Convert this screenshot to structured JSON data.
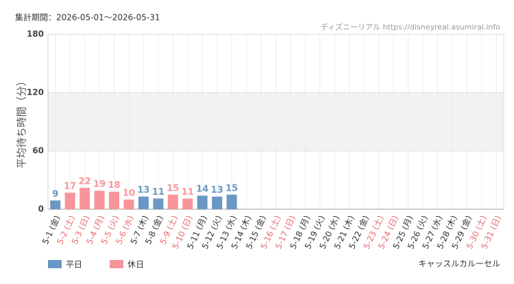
{
  "chart_data": {
    "type": "bar",
    "period": "集計期間：2026-05-01～2026-05-31",
    "source": "ディズニーリアル https://disneyreal.asumirai.info",
    "attraction": "キャッスルカルーセル",
    "y_label": "平均待ち時間（分）",
    "categories": [
      "5-1 (金)",
      "5-2 (土)",
      "5-3 (日)",
      "5-4 (月)",
      "5-5 (火)",
      "5-6 (水)",
      "5-7 (木)",
      "5-8 (金)",
      "5-9 (土)",
      "5-10 (日)",
      "5-11 (月)",
      "5-12 (火)",
      "5-13 (水)",
      "5-14 (木)",
      "5-15 (金)",
      "5-16 (土)",
      "5-17 (日)",
      "5-18 (月)",
      "5-19 (火)",
      "5-20 (水)",
      "5-21 (木)",
      "5-22 (金)",
      "5-23 (土)",
      "5-24 (日)",
      "5-25 (月)",
      "5-26 (火)",
      "5-27 (水)",
      "5-28 (木)",
      "5-29 (金)",
      "5-30 (土)",
      "5-31 (日)"
    ],
    "category_colors": [
      "#333",
      "#e8696f",
      "#e8696f",
      "#e8696f",
      "#e8696f",
      "#e8696f",
      "#333",
      "#333",
      "#e8696f",
      "#e8696f",
      "#333",
      "#333",
      "#333",
      "#333",
      "#333",
      "#e8696f",
      "#e8696f",
      "#333",
      "#333",
      "#333",
      "#333",
      "#333",
      "#e8696f",
      "#e8696f",
      "#333",
      "#333",
      "#333",
      "#333",
      "#333",
      "#e8696f",
      "#e8696f"
    ],
    "series": [
      {
        "name": "平日",
        "color": "#6a97c4",
        "values": [
          9,
          null,
          null,
          null,
          null,
          null,
          13,
          11,
          null,
          null,
          14,
          13,
          15,
          null,
          null,
          null,
          null,
          null,
          null,
          null,
          null,
          null,
          null,
          null,
          null,
          null,
          null,
          null,
          null,
          null,
          null
        ]
      },
      {
        "name": "休日",
        "color": "#f8959a",
        "values": [
          null,
          17,
          22,
          19,
          18,
          10,
          null,
          null,
          15,
          11,
          null,
          null,
          null,
          null,
          null,
          null,
          null,
          null,
          null,
          null,
          null,
          null,
          null,
          null,
          null,
          null,
          null,
          null,
          null,
          null,
          null
        ]
      }
    ],
    "ylim": [
      0,
      180
    ],
    "yticks": [
      0,
      60,
      120,
      180
    ],
    "shaded_range": [
      60,
      120
    ],
    "grid": true
  }
}
